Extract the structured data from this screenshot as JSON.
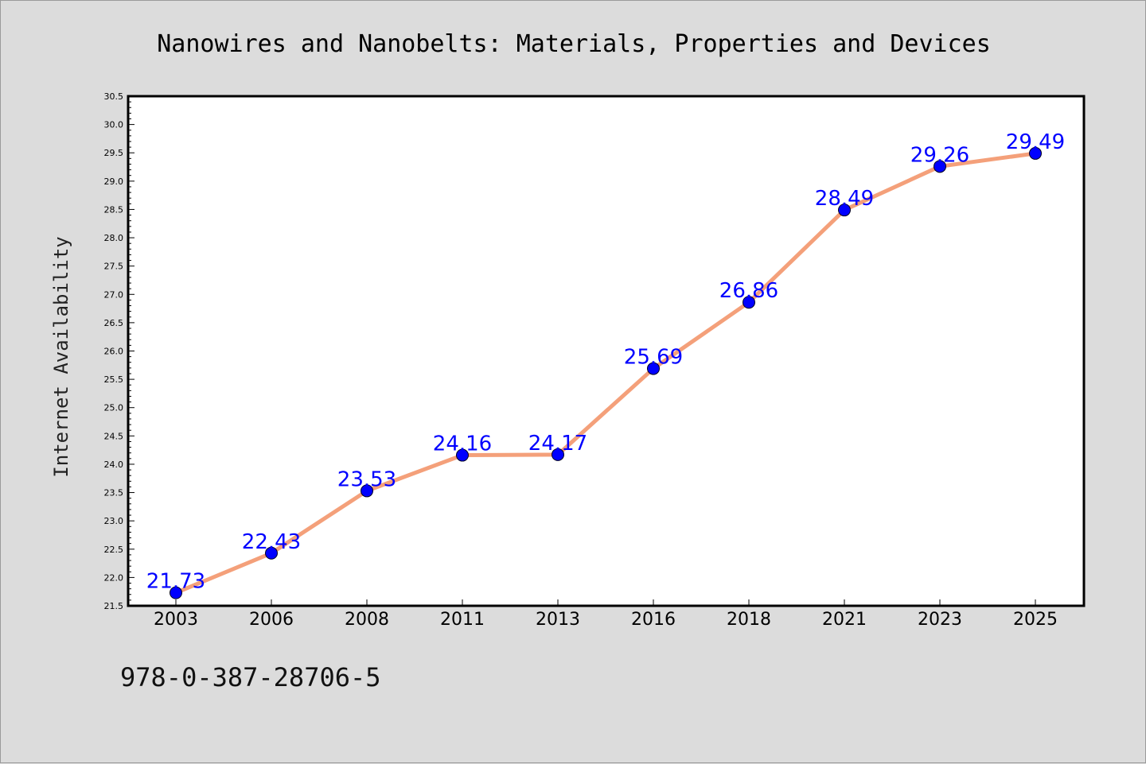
{
  "chart_data": {
    "type": "line",
    "title": "Nanowires and Nanobelts: Materials, Properties and Devices",
    "xlabel": "",
    "ylabel": "Internet Availability",
    "categories": [
      "2003",
      "2006",
      "2008",
      "2011",
      "2013",
      "2016",
      "2018",
      "2021",
      "2023",
      "2025"
    ],
    "series": [
      {
        "values": [
          21.73,
          22.43,
          23.53,
          24.16,
          24.17,
          25.69,
          26.86,
          28.49,
          29.26,
          29.49
        ],
        "data_labels": [
          "21.73",
          "22.43",
          "23.53",
          "24.16",
          "24.17",
          "25.69",
          "26.86",
          "28.49",
          "29.26",
          "29.49"
        ],
        "line_color": "#f4a07a",
        "marker_color": "#0000ff"
      }
    ],
    "ylim": [
      21.5,
      30.5
    ],
    "yticks": [
      "21.5",
      "22.0",
      "22.5",
      "23.0",
      "23.5",
      "24.0",
      "24.5",
      "25.0",
      "25.5",
      "26.0",
      "26.5",
      "27.0",
      "27.5",
      "28.0",
      "28.5",
      "29.0",
      "29.5",
      "30.0",
      "30.5"
    ],
    "grid": false,
    "legend": "none"
  },
  "footer": {
    "isbn": "978-0-387-28706-5"
  },
  "colors": {
    "background": "#dcdcdc",
    "plot_area": "#ffffff",
    "line": "#f4a07a",
    "marker": "#0000ff",
    "data_label": "#0000ff"
  }
}
